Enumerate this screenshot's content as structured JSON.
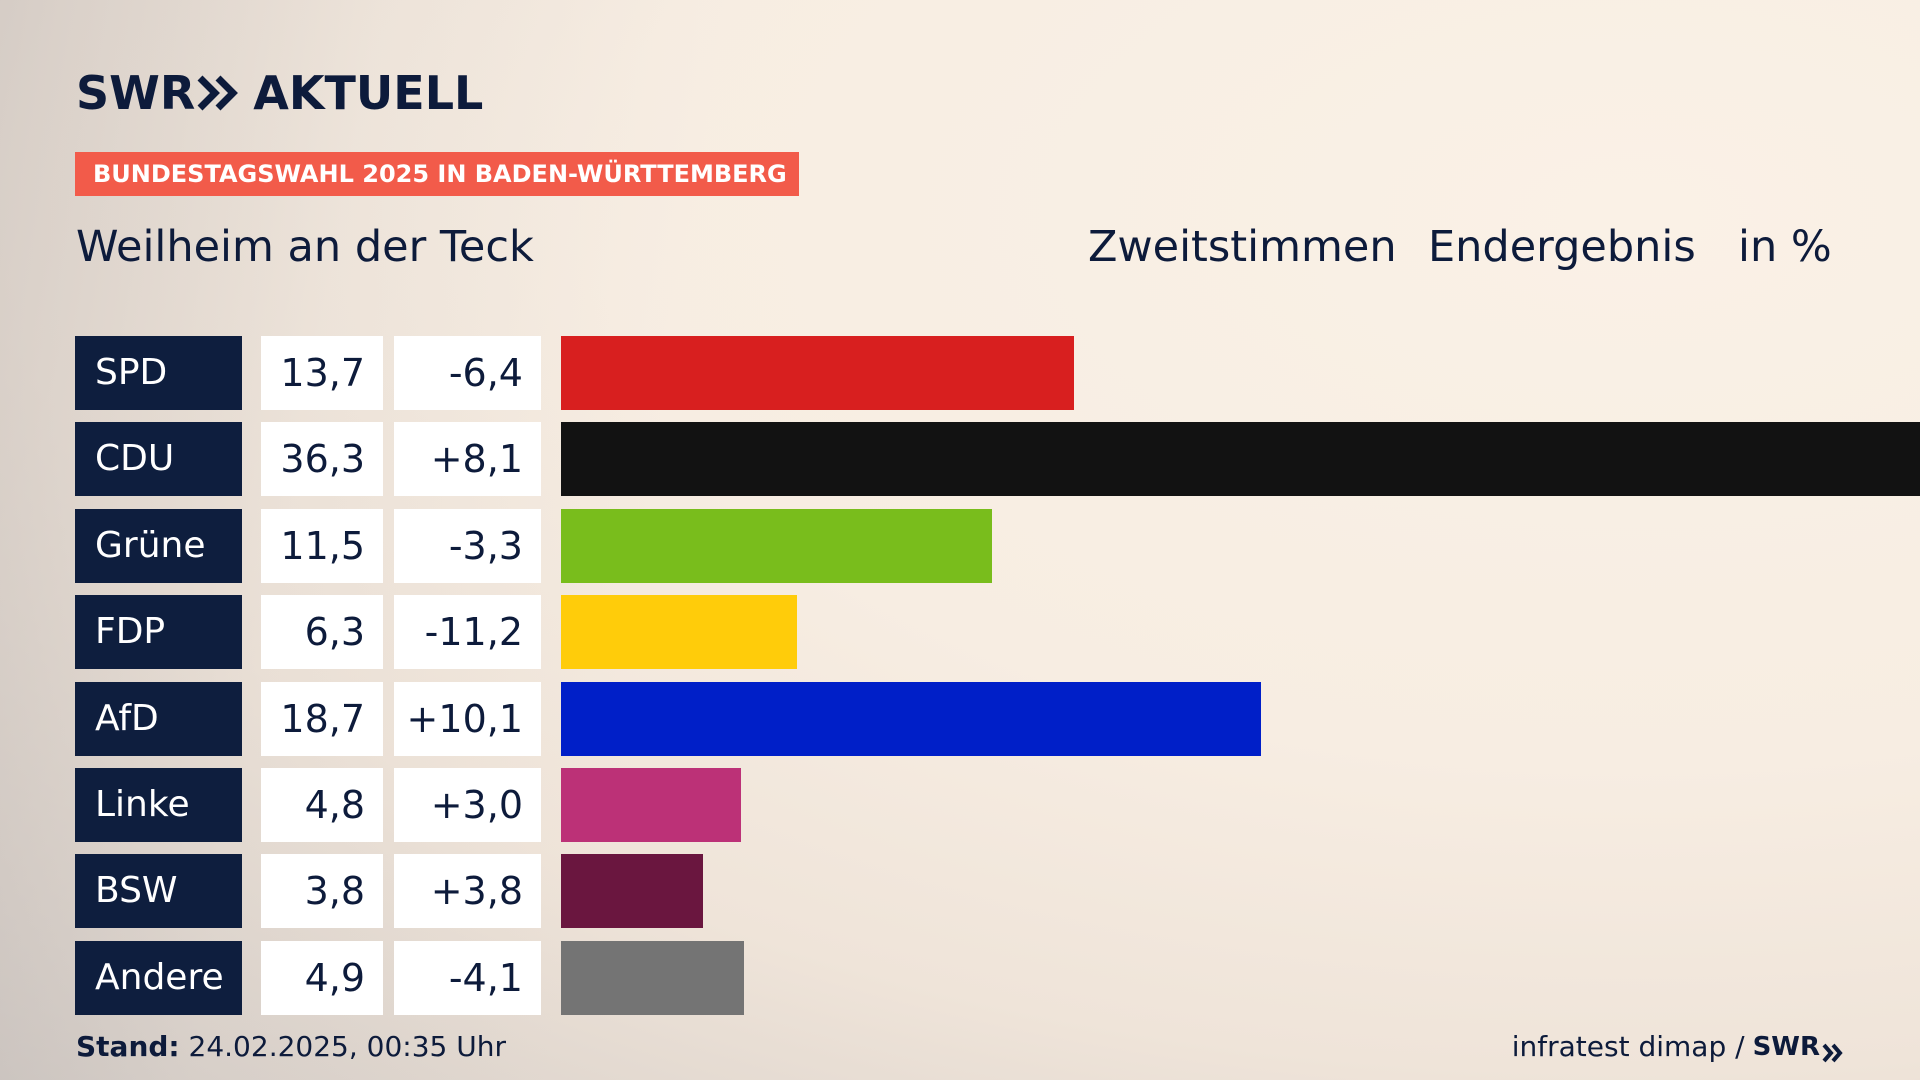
{
  "brand": {
    "swr": "SWR",
    "aktuell": "AKTUELL"
  },
  "banner": "BUNDESTAGSWAHL 2025 IN BADEN-WÜRTTEMBERG",
  "subtitle": "Weilheim an der Teck",
  "header": {
    "vote_type": "Zweitstimmen",
    "result_type": "Endergebnis",
    "unit": "in %"
  },
  "footer": {
    "stand_label": "Stand:",
    "stand_value": "24.02.2025, 00:35 Uhr",
    "source": "infratest dimap /",
    "source_brand": "SWR"
  },
  "chart_data": {
    "type": "bar",
    "orientation": "horizontal",
    "unit": "%",
    "categories": [
      "SPD",
      "CDU",
      "Grüne",
      "FDP",
      "AfD",
      "Linke",
      "BSW",
      "Andere"
    ],
    "values": [
      13.7,
      36.3,
      11.5,
      6.3,
      18.7,
      4.8,
      3.8,
      4.9
    ],
    "value_labels": [
      "13,7",
      "36,3",
      "11,5",
      "6,3",
      "18,7",
      "4,8",
      "3,8",
      "4,9"
    ],
    "diff_labels": [
      "-6,4",
      "+8,1",
      "-3,3",
      "-11,2",
      "+10,1",
      "+3,0",
      "+3,8",
      "-4,1"
    ],
    "diffs": [
      -6.4,
      8.1,
      -3.3,
      -11.2,
      10.1,
      3.0,
      3.8,
      -4.1
    ],
    "colors": [
      "#d81f1f",
      "#121212",
      "#79bd1c",
      "#ffcc0a",
      "#001fc8",
      "#bc3177",
      "#6a163f",
      "#747474"
    ],
    "xlim": [
      0,
      36.3
    ],
    "grid": false,
    "legend": "none"
  }
}
